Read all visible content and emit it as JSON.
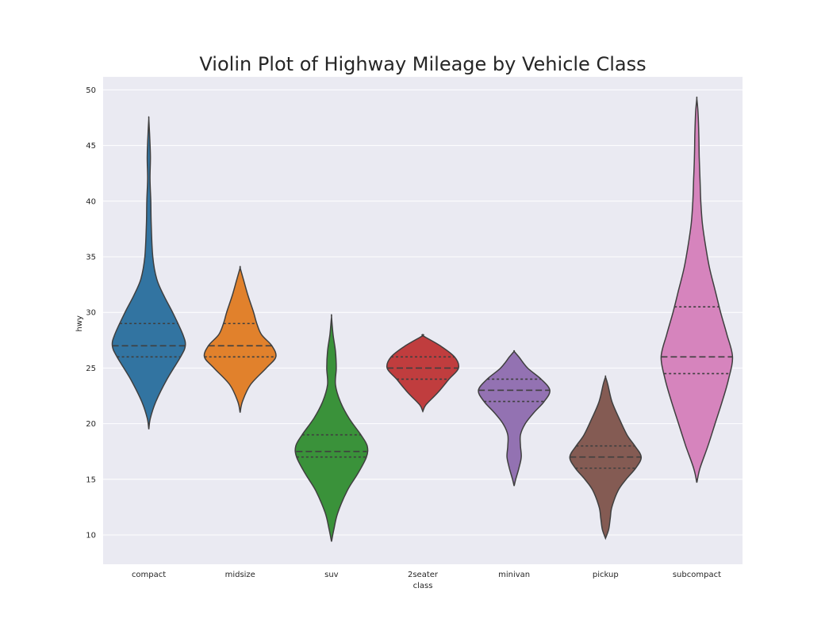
{
  "chart_data": {
    "type": "violin",
    "title": "Violin Plot of Highway Mileage by Vehicle Class",
    "xlabel": "class",
    "ylabel": "hwy",
    "ylim": [
      7.5,
      51.3
    ],
    "yticks": [
      10,
      15,
      20,
      25,
      30,
      35,
      40,
      45,
      50
    ],
    "grid": true,
    "inner": "quartile",
    "background_color": "#eaeaf2",
    "outline_color": "#3f3f3f",
    "categories": [
      "compact",
      "midsize",
      "suv",
      "2seater",
      "minivan",
      "pickup",
      "subcompact"
    ],
    "series": [
      {
        "name": "compact",
        "color": "#3274a1",
        "min": 19.5,
        "max": 47.4,
        "q1": 26,
        "median": 27,
        "q3": 29,
        "profile": [
          [
            19.5,
            0
          ],
          [
            20.5,
            2
          ],
          [
            22,
            9
          ],
          [
            24,
            23
          ],
          [
            26,
            40
          ],
          [
            27,
            46
          ],
          [
            28,
            43
          ],
          [
            30,
            30
          ],
          [
            31.5,
            19
          ],
          [
            33,
            10
          ],
          [
            35,
            5
          ],
          [
            38,
            3
          ],
          [
            40,
            2.5
          ],
          [
            42,
            1.5
          ],
          [
            44,
            2
          ],
          [
            46,
            1
          ],
          [
            47.4,
            0
          ]
        ]
      },
      {
        "name": "midsize",
        "color": "#e1812c",
        "min": 21,
        "max": 34,
        "q1": 26,
        "median": 27,
        "q3": 29,
        "profile": [
          [
            21,
            0
          ],
          [
            22,
            3
          ],
          [
            23.5,
            13
          ],
          [
            25,
            33
          ],
          [
            26,
            45
          ],
          [
            27,
            40
          ],
          [
            28,
            27
          ],
          [
            29,
            21
          ],
          [
            30,
            17
          ],
          [
            31.5,
            10
          ],
          [
            33,
            4
          ],
          [
            34,
            0
          ]
        ]
      },
      {
        "name": "suv",
        "color": "#3a923a",
        "min": 9.4,
        "max": 29.6,
        "q1": 17,
        "median": 17.5,
        "q3": 19,
        "profile": [
          [
            9.4,
            0
          ],
          [
            10.5,
            3
          ],
          [
            12,
            8
          ],
          [
            14,
            20
          ],
          [
            15.5,
            33
          ],
          [
            17,
            44
          ],
          [
            18,
            45
          ],
          [
            19,
            37
          ],
          [
            20.5,
            22
          ],
          [
            22,
            11
          ],
          [
            23.5,
            5
          ],
          [
            25,
            6
          ],
          [
            26.5,
            5
          ],
          [
            28,
            2
          ],
          [
            29.6,
            0
          ]
        ]
      },
      {
        "name": "2seater",
        "color": "#c03d3e",
        "min": 21.1,
        "max": 27.9,
        "q1": 24,
        "median": 25,
        "q3": 26,
        "profile": [
          [
            21.1,
            0
          ],
          [
            21.7,
            4
          ],
          [
            22.8,
            19
          ],
          [
            24,
            33
          ],
          [
            25,
            45
          ],
          [
            26,
            40
          ],
          [
            27,
            22
          ],
          [
            27.9,
            0
          ]
        ]
      },
      {
        "name": "minivan",
        "color": "#9372b2",
        "min": 14.4,
        "max": 26.5,
        "q1": 22,
        "median": 23,
        "q3": 24,
        "profile": [
          [
            14.4,
            0
          ],
          [
            15,
            2
          ],
          [
            16,
            6
          ],
          [
            17,
            9
          ],
          [
            18,
            8
          ],
          [
            19,
            8
          ],
          [
            20,
            14
          ],
          [
            21,
            25
          ],
          [
            22,
            38
          ],
          [
            23,
            45
          ],
          [
            24,
            34
          ],
          [
            25,
            17
          ],
          [
            26,
            6
          ],
          [
            26.5,
            0
          ]
        ]
      },
      {
        "name": "pickup",
        "color": "#845b53",
        "min": 9.7,
        "max": 24.2,
        "q1": 16,
        "median": 17,
        "q3": 18,
        "profile": [
          [
            9.7,
            0
          ],
          [
            10.5,
            4
          ],
          [
            11.5,
            6
          ],
          [
            12.5,
            8
          ],
          [
            14,
            16
          ],
          [
            15,
            26
          ],
          [
            16,
            38
          ],
          [
            17,
            45
          ],
          [
            18,
            37
          ],
          [
            19,
            27
          ],
          [
            20.5,
            17
          ],
          [
            22,
            8
          ],
          [
            23.5,
            3
          ],
          [
            24.2,
            0
          ]
        ]
      },
      {
        "name": "subcompact",
        "color": "#d684bd",
        "min": 14.7,
        "max": 49.2,
        "q1": 24.5,
        "median": 26,
        "q3": 30.5,
        "profile": [
          [
            14.7,
            0
          ],
          [
            16,
            4
          ],
          [
            18,
            14
          ],
          [
            20,
            23
          ],
          [
            22,
            32
          ],
          [
            24,
            40
          ],
          [
            26,
            45
          ],
          [
            28,
            38
          ],
          [
            30,
            30
          ],
          [
            32,
            23
          ],
          [
            34,
            16
          ],
          [
            36,
            11
          ],
          [
            38,
            7
          ],
          [
            40,
            5
          ],
          [
            42,
            4
          ],
          [
            44,
            3
          ],
          [
            46,
            2.5
          ],
          [
            48,
            1.5
          ],
          [
            49.2,
            0
          ]
        ]
      }
    ]
  }
}
